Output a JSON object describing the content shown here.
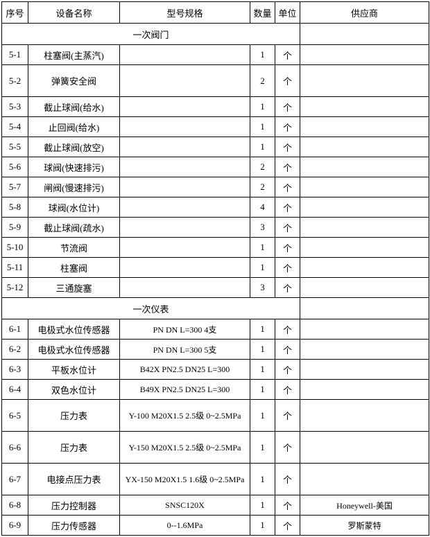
{
  "headers": {
    "seq": "序号",
    "name": "设备名称",
    "spec": "型号规格",
    "qty": "数量",
    "unit": "单位",
    "supplier": "供应商"
  },
  "sections": {
    "s1": "一次阀门",
    "s2": "一次仪表"
  },
  "rows": {
    "r1": {
      "seq": "5-1",
      "name": "柱塞阀(主蒸汽)",
      "spec": "",
      "qty": "1",
      "unit": "个",
      "sup": ""
    },
    "r2": {
      "seq": "5-2",
      "name": "弹簧安全阀",
      "spec": "",
      "qty": "2",
      "unit": "个",
      "sup": ""
    },
    "r3": {
      "seq": "5-3",
      "name": "截止球阀(给水)",
      "spec": "",
      "qty": "1",
      "unit": "个",
      "sup": ""
    },
    "r4": {
      "seq": "5-4",
      "name": "止回阀(给水)",
      "spec": "",
      "qty": "1",
      "unit": "个",
      "sup": ""
    },
    "r5": {
      "seq": "5-5",
      "name": "截止球阀(放空)",
      "spec": "",
      "qty": "1",
      "unit": "个",
      "sup": ""
    },
    "r6": {
      "seq": "5-6",
      "name": "球阀(快速排污)",
      "spec": "",
      "qty": "2",
      "unit": "个",
      "sup": ""
    },
    "r7": {
      "seq": "5-7",
      "name": "闸阀(慢速排污)",
      "spec": "",
      "qty": "2",
      "unit": "个",
      "sup": ""
    },
    "r8": {
      "seq": "5-8",
      "name": "球阀(水位计)",
      "spec": "",
      "qty": "4",
      "unit": "个",
      "sup": ""
    },
    "r9": {
      "seq": "5-9",
      "name": "截止球阀(疏水)",
      "spec": "",
      "qty": "3",
      "unit": "个",
      "sup": ""
    },
    "r10": {
      "seq": "5-10",
      "name": "节流阀",
      "spec": "",
      "qty": "1",
      "unit": "个",
      "sup": ""
    },
    "r11": {
      "seq": "5-11",
      "name": "柱塞阀",
      "spec": "",
      "qty": "1",
      "unit": "个",
      "sup": ""
    },
    "r12": {
      "seq": "5-12",
      "name": "三通旋塞",
      "spec": "",
      "qty": "3",
      "unit": "个",
      "sup": ""
    },
    "r13": {
      "seq": "6-1",
      "name": "电极式水位传感器",
      "spec": "PN   DN  L=300  4支",
      "qty": "1",
      "unit": "个",
      "sup": ""
    },
    "r14": {
      "seq": "6-2",
      "name": "电极式水位传感器",
      "spec": "PN   DN  L=300  5支",
      "qty": "1",
      "unit": "个",
      "sup": ""
    },
    "r15": {
      "seq": "6-3",
      "name": "平板水位计",
      "spec": "B42X  PN2.5  DN25  L=300",
      "qty": "1",
      "unit": "个",
      "sup": ""
    },
    "r16": {
      "seq": "6-4",
      "name": "双色水位计",
      "spec": "B49X  PN2.5  DN25  L=300",
      "qty": "1",
      "unit": "个",
      "sup": ""
    },
    "r17": {
      "seq": "6-5",
      "name": "压力表",
      "spec": "Y-100 M20X1.5 2.5级 0~2.5MPa",
      "qty": "1",
      "unit": "个",
      "sup": ""
    },
    "r18": {
      "seq": "6-6",
      "name": "压力表",
      "spec": "Y-150 M20X1.5 2.5级 0~2.5MPa",
      "qty": "1",
      "unit": "个",
      "sup": ""
    },
    "r19": {
      "seq": "6-7",
      "name": "电接点压力表",
      "spec": "YX-150 M20X1.5 1.6级 0~2.5MPa",
      "qty": "1",
      "unit": "个",
      "sup": ""
    },
    "r20": {
      "seq": "6-8",
      "name": "压力控制器",
      "spec": "SNSC120X",
      "qty": "1",
      "unit": "个",
      "sup": "Honeywell-美国"
    },
    "r21": {
      "seq": "6-9",
      "name": "压力传感器",
      "spec": "0--1.6MPa",
      "qty": "1",
      "unit": "个",
      "sup": "罗斯蒙特"
    }
  }
}
